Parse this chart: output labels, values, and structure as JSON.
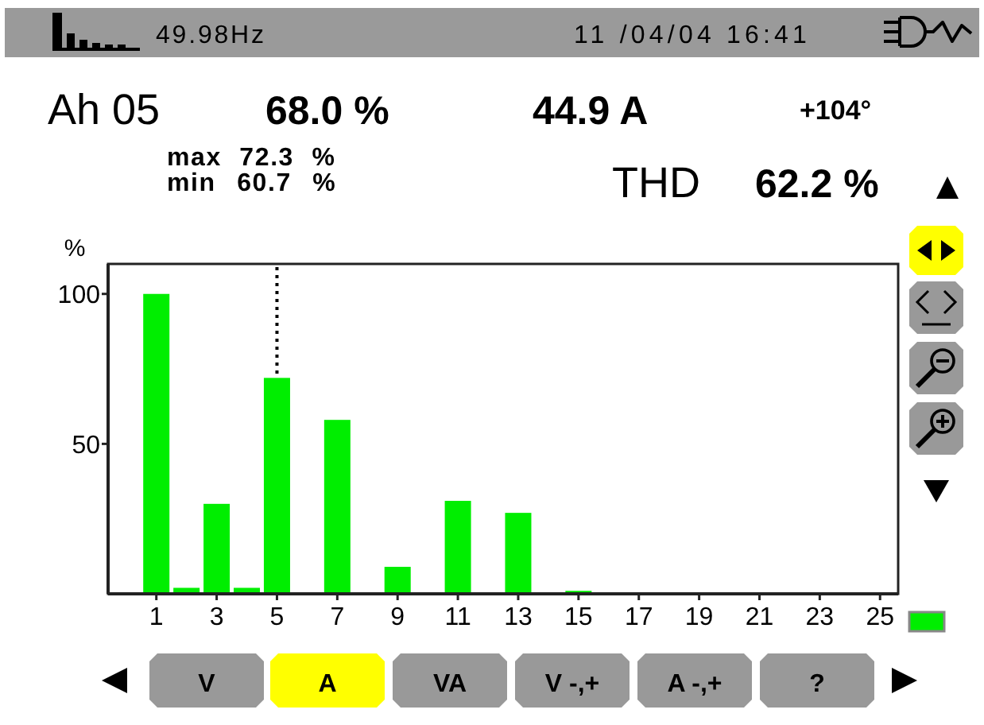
{
  "chart_data": {
    "type": "bar",
    "x": [
      1,
      2,
      3,
      4,
      5,
      7,
      9,
      11,
      13,
      15
    ],
    "values": [
      100,
      2,
      30,
      2,
      72,
      58,
      9,
      31,
      27,
      1
    ],
    "color": "#00ee00",
    "ylabel": "%",
    "xlim": [
      -0.6,
      25.6
    ],
    "xticks": [
      1,
      3,
      5,
      7,
      9,
      11,
      13,
      15,
      17,
      19,
      21,
      23,
      25
    ],
    "ylim": [
      0,
      110
    ],
    "yticks": [
      50,
      100
    ],
    "ref_lines": [
      {
        "axis": "x",
        "value": 5,
        "line_style": "dotted"
      }
    ],
    "annotations": [
      "49.98Hz",
      "11 /04/04 16:41",
      "Ah 05",
      "68.0 %",
      "44.9 A",
      "+104°",
      "max 72.3 %",
      "min 60.7 %",
      "THD",
      "62.2 %",
      "V",
      "A",
      "VA",
      "V -,+",
      "A -,+",
      "?"
    ]
  }
}
